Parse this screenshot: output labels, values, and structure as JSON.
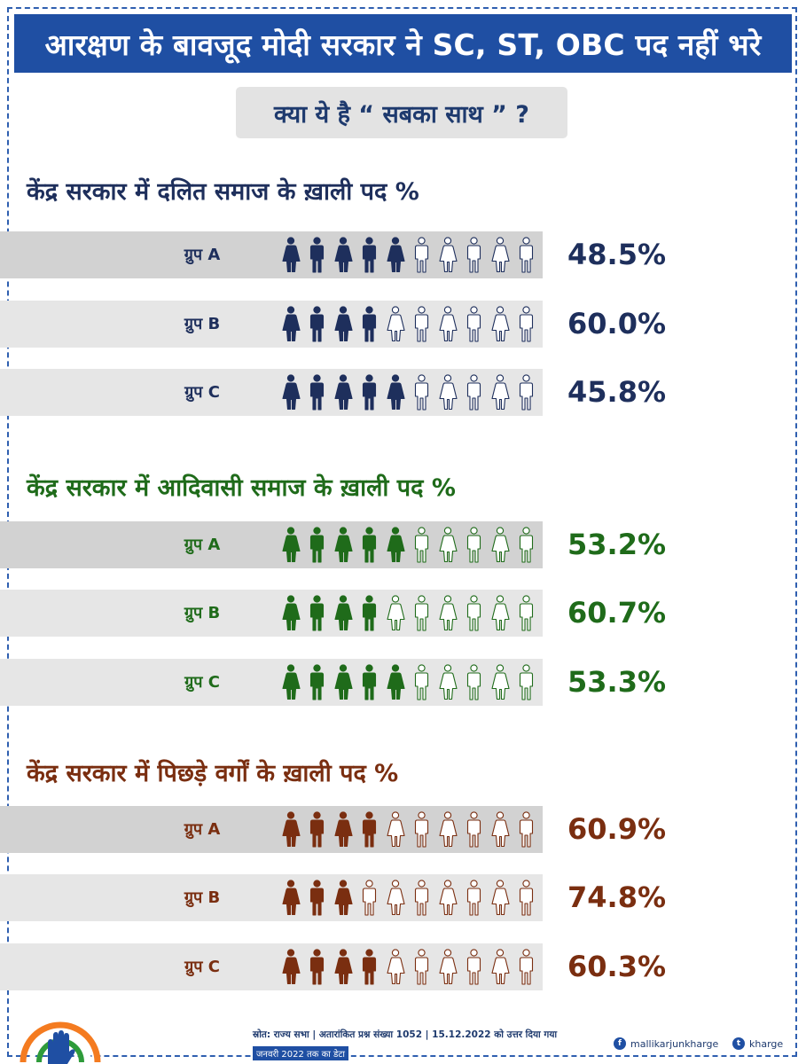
{
  "header": {
    "title": "आरक्षण के बावजूद मोदी सरकार ने SC, ST, OBC पद नहीं भरे"
  },
  "subtitle": "क्या ये है “ सबका साथ ” ?",
  "chart_data": [
    {
      "type": "pictogram",
      "title": "केंद्र सरकार में दलित समाज के ख़ाली पद %",
      "color": "#1e2f5c",
      "categories": [
        "ग्रुप A",
        "ग्रुप B",
        "ग्रुप C"
      ],
      "values": [
        48.5,
        60.0,
        45.8
      ],
      "labels": [
        "48.5%",
        "60.0%",
        "45.8%"
      ],
      "filled_icons": [
        5,
        4,
        5
      ],
      "total_icons": 10
    },
    {
      "type": "pictogram",
      "title": "केंद्र सरकार में आदिवासी समाज के ख़ाली पद %",
      "color": "#1f6b1a",
      "categories": [
        "ग्रुप A",
        "ग्रुप B",
        "ग्रुप C"
      ],
      "values": [
        53.2,
        60.7,
        53.3
      ],
      "labels": [
        "53.2%",
        "60.7%",
        "53.3%"
      ],
      "filled_icons": [
        5,
        4,
        5
      ],
      "total_icons": 10
    },
    {
      "type": "pictogram",
      "title": "केंद्र सरकार में पिछड़े वर्गों के ख़ाली पद %",
      "color": "#7a2e10",
      "categories": [
        "ग्रुप A",
        "ग्रुप B",
        "ग्रुप C"
      ],
      "values": [
        60.9,
        74.8,
        60.3
      ],
      "labels": [
        "60.9%",
        "74.8%",
        "60.3%"
      ],
      "filled_icons": [
        4,
        3,
        4
      ],
      "total_icons": 10
    }
  ],
  "footer": {
    "source": "स्रोत: राज्य सभा | अतारांकित प्रश्न संख्या 1052 | 15.12.2022 को उत्तर दिया गया",
    "date_note": "जनवरी 2022 तक का डेटा",
    "facebook_handle": "mallikarjunkharge",
    "twitter_handle": "kharge",
    "facebook_icon": "facebook-icon",
    "twitter_icon": "twitter-icon",
    "logo": "congress-hand-logo"
  }
}
